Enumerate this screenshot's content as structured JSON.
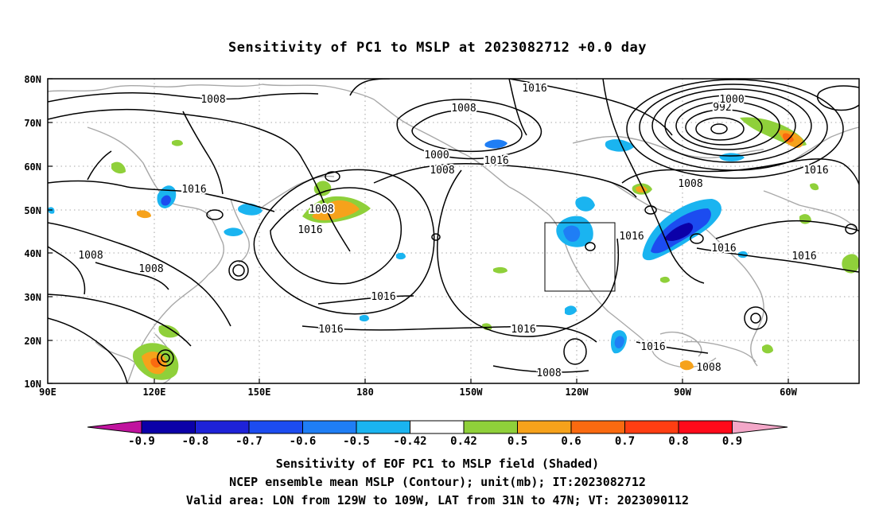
{
  "title": "Sensitivity of PC1 to MSLP at 2023082712 +0.0 day",
  "lat_labels": [
    "80N",
    "70N",
    "60N",
    "50N",
    "40N",
    "30N",
    "20N",
    "10N"
  ],
  "lon_labels": [
    "90E",
    "120E",
    "150E",
    "180",
    "150W",
    "120W",
    "90W",
    "60W"
  ],
  "contour_labels": [
    {
      "text": "1008"
    },
    {
      "text": "1008"
    },
    {
      "text": "1016"
    },
    {
      "text": "1000"
    },
    {
      "text": "992"
    },
    {
      "text": "1000"
    },
    {
      "text": "1008"
    },
    {
      "text": "1016"
    },
    {
      "text": "1016"
    },
    {
      "text": "1008"
    },
    {
      "text": "1016"
    },
    {
      "text": "1008"
    },
    {
      "text": "1008"
    },
    {
      "text": "1016"
    },
    {
      "text": "1016"
    },
    {
      "text": "1016"
    },
    {
      "text": "1016"
    },
    {
      "text": "1016"
    },
    {
      "text": "1016"
    },
    {
      "text": "1016"
    },
    {
      "text": "1008"
    },
    {
      "text": "1008"
    },
    {
      "text": "1016"
    }
  ],
  "colorbar": {
    "labels": [
      "-0.9",
      "-0.8",
      "-0.7",
      "-0.6",
      "-0.5",
      "-0.42",
      "0.42",
      "0.5",
      "0.6",
      "0.7",
      "0.8",
      "0.9"
    ],
    "colors": {
      "low_arrow": "#c0139e",
      "high_arrow": "#f3a7c8",
      "bins": [
        "#0b00a8",
        "#1e22d8",
        "#1c4cf0",
        "#1f7ef5",
        "#1ab4f0",
        "#ffffff",
        "#8fd03a",
        "#f6a21b",
        "#fa6a10",
        "#ff3e12",
        "#ff0a1a"
      ]
    }
  },
  "captions": [
    "Sensitivity of EOF PC1 to MSLP field (Shaded)",
    "NCEP ensemble mean MSLP (Contour); unit(mb); IT:2023082712",
    "Valid area: LON from 129W to 109W, LAT from 31N to 47N; VT: 2023090112"
  ],
  "valid_area": {
    "lon_from": "129W",
    "lon_to": "109W",
    "lat_from": "31N",
    "lat_to": "47N"
  }
}
